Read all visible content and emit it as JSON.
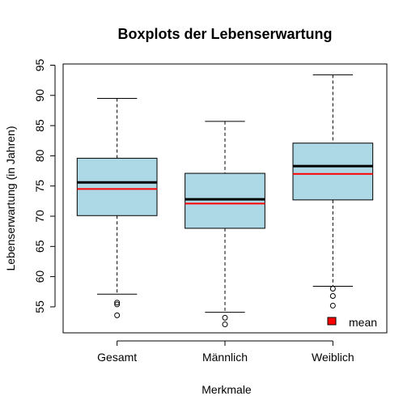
{
  "chart_data": {
    "type": "boxplot",
    "title": "Boxplots der Lebenserwartung",
    "xlabel": "Merkmale",
    "ylabel": "Lebenserwartung (in Jahren)",
    "ylim": [
      50.7,
      95.2
    ],
    "y_ticks": [
      55,
      60,
      65,
      70,
      75,
      80,
      85,
      90,
      95
    ],
    "categories": [
      "Gesamt",
      "Männlich",
      "Weiblich"
    ],
    "grid": false,
    "box_fill": "#ADD8E6",
    "mean_color": "#FF0000",
    "series": [
      {
        "category": "Gesamt",
        "whisker_low": 57.1,
        "q1": 70.1,
        "median": 75.6,
        "q3": 79.6,
        "whisker_high": 89.5,
        "mean": 74.5,
        "outliers": [
          55.7,
          55.4,
          53.6
        ]
      },
      {
        "category": "Männlich",
        "whisker_low": 54.1,
        "q1": 68.0,
        "median": 72.8,
        "q3": 77.1,
        "whisker_high": 85.7,
        "mean": 72.1,
        "outliers": [
          53.2,
          52.1
        ]
      },
      {
        "category": "Weiblich",
        "whisker_low": 58.4,
        "q1": 72.7,
        "median": 78.3,
        "q3": 82.1,
        "whisker_high": 93.4,
        "mean": 77.0,
        "outliers": [
          58.0,
          56.8,
          55.2
        ]
      }
    ],
    "legend": {
      "label": "mean",
      "color": "#FF0000",
      "position": "bottom-right"
    }
  }
}
